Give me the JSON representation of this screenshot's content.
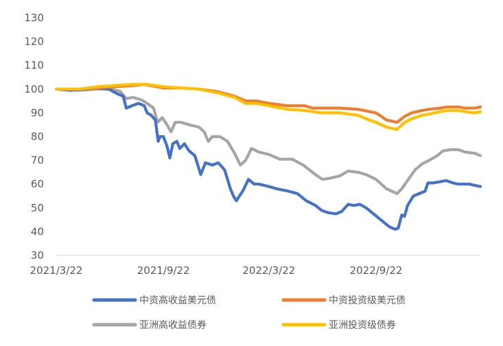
{
  "chart_data": {
    "type": "line",
    "title": "",
    "xlabel": "",
    "ylabel": "",
    "ylim": [
      30,
      130
    ],
    "yticks": [
      30,
      40,
      50,
      60,
      70,
      80,
      90,
      100,
      110,
      120,
      130
    ],
    "x_start": "2021/3/22",
    "x_end": "2023/3/20",
    "xticks": [
      "2021/3/22",
      "2021/9/22",
      "2022/3/22",
      "2022/9/22"
    ],
    "grid": false,
    "legend": "bottom",
    "series": [
      {
        "name": "中资高收益美元债",
        "color": "#4472C4",
        "points": [
          [
            "2021/3/22",
            100
          ],
          [
            "2021/4/15",
            99.5
          ],
          [
            "2021/5/10",
            100
          ],
          [
            "2021/6/1",
            100.5
          ],
          [
            "2021/6/20",
            100
          ],
          [
            "2021/7/5",
            98
          ],
          [
            "2021/7/15",
            97
          ],
          [
            "2021/7/20",
            92
          ],
          [
            "2021/7/30",
            93
          ],
          [
            "2021/8/10",
            94
          ],
          [
            "2021/8/20",
            93
          ],
          [
            "2021/8/25",
            90
          ],
          [
            "2021/9/1",
            89
          ],
          [
            "2021/9/8",
            87
          ],
          [
            "2021/9/13",
            78
          ],
          [
            "2021/9/16",
            80
          ],
          [
            "2021/9/22",
            80
          ],
          [
            "2021/9/28",
            76
          ],
          [
            "2021/10/3",
            71
          ],
          [
            "2021/10/8",
            77
          ],
          [
            "2021/10/15",
            78
          ],
          [
            "2021/10/20",
            75
          ],
          [
            "2021/10/28",
            77
          ],
          [
            "2021/11/5",
            74
          ],
          [
            "2021/11/15",
            72
          ],
          [
            "2021/11/20",
            68
          ],
          [
            "2021/11/25",
            64
          ],
          [
            "2021/12/3",
            69
          ],
          [
            "2021/12/15",
            68
          ],
          [
            "2021/12/25",
            69
          ],
          [
            "2022/1/5",
            66
          ],
          [
            "2022/1/15",
            58
          ],
          [
            "2022/1/20",
            55
          ],
          [
            "2022/1/25",
            53
          ],
          [
            "2022/2/5",
            57
          ],
          [
            "2022/2/15",
            62
          ],
          [
            "2022/2/25",
            60
          ],
          [
            "2022/3/5",
            60
          ],
          [
            "2022/3/22",
            59
          ],
          [
            "2022/4/5",
            58
          ],
          [
            "2022/4/25",
            57
          ],
          [
            "2022/5/10",
            56
          ],
          [
            "2022/5/25",
            53
          ],
          [
            "2022/6/10",
            51
          ],
          [
            "2022/6/20",
            49
          ],
          [
            "2022/7/1",
            48
          ],
          [
            "2022/7/15",
            47.5
          ],
          [
            "2022/7/25",
            48.5
          ],
          [
            "2022/8/5",
            51.5
          ],
          [
            "2022/8/15",
            51
          ],
          [
            "2022/8/25",
            51.5
          ],
          [
            "2022/9/5",
            50
          ],
          [
            "2022/9/15",
            48
          ],
          [
            "2022/9/25",
            46
          ],
          [
            "2022/10/5",
            44
          ],
          [
            "2022/10/15",
            42
          ],
          [
            "2022/10/25",
            41
          ],
          [
            "2022/10/30",
            41.5
          ],
          [
            "2022/11/5",
            47
          ],
          [
            "2022/11/10",
            46.5
          ],
          [
            "2022/11/15",
            51
          ],
          [
            "2022/11/25",
            55
          ],
          [
            "2022/12/5",
            56
          ],
          [
            "2022/12/15",
            57
          ],
          [
            "2022/12/20",
            60.5
          ],
          [
            "2022/12/28",
            60.5
          ],
          [
            "2023/1/10",
            61
          ],
          [
            "2023/1/20",
            61.5
          ],
          [
            "2023/2/1",
            60.5
          ],
          [
            "2023/2/10",
            60
          ],
          [
            "2023/2/20",
            60
          ],
          [
            "2023/3/1",
            60
          ],
          [
            "2023/3/10",
            59.5
          ],
          [
            "2023/3/20",
            59
          ]
        ]
      },
      {
        "name": "中资投资级美元债",
        "color": "#ED7D31",
        "points": [
          [
            "2021/3/22",
            100
          ],
          [
            "2021/5/1",
            100
          ],
          [
            "2021/6/1",
            100.5
          ],
          [
            "2021/7/1",
            101
          ],
          [
            "2021/8/1",
            101.5
          ],
          [
            "2021/8/20",
            102
          ],
          [
            "2021/9/22",
            100.5
          ],
          [
            "2021/10/22",
            100.5
          ],
          [
            "2021/11/22",
            100
          ],
          [
            "2021/12/22",
            99
          ],
          [
            "2022/1/22",
            97
          ],
          [
            "2022/2/10",
            95
          ],
          [
            "2022/3/1",
            95
          ],
          [
            "2022/3/22",
            94
          ],
          [
            "2022/4/22",
            93
          ],
          [
            "2022/5/22",
            93
          ],
          [
            "2022/6/5",
            92
          ],
          [
            "2022/6/22",
            92
          ],
          [
            "2022/7/22",
            92
          ],
          [
            "2022/8/22",
            91.5
          ],
          [
            "2022/9/22",
            90
          ],
          [
            "2022/10/10",
            87
          ],
          [
            "2022/10/28",
            86
          ],
          [
            "2022/11/10",
            88.5
          ],
          [
            "2022/11/22",
            90
          ],
          [
            "2022/12/10",
            91
          ],
          [
            "2022/12/22",
            91.5
          ],
          [
            "2023/1/10",
            92
          ],
          [
            "2023/1/22",
            92.5
          ],
          [
            "2023/2/10",
            92.5
          ],
          [
            "2023/2/22",
            92
          ],
          [
            "2023/3/10",
            92
          ],
          [
            "2023/3/20",
            92.5
          ]
        ]
      },
      {
        "name": "亚洲高收益债券",
        "color": "#A5A5A5",
        "points": [
          [
            "2021/3/22",
            100
          ],
          [
            "2021/5/1",
            99.5
          ],
          [
            "2021/6/1",
            100
          ],
          [
            "2021/6/25",
            100
          ],
          [
            "2021/7/10",
            99
          ],
          [
            "2021/7/20",
            96
          ],
          [
            "2021/8/1",
            96.5
          ],
          [
            "2021/8/15",
            95.5
          ],
          [
            "2021/8/25",
            94
          ],
          [
            "2021/9/5",
            92
          ],
          [
            "2021/9/12",
            86
          ],
          [
            "2021/9/20",
            88
          ],
          [
            "2021/9/28",
            85
          ],
          [
            "2021/10/5",
            82
          ],
          [
            "2021/10/12",
            86
          ],
          [
            "2021/10/22",
            86
          ],
          [
            "2021/11/5",
            85
          ],
          [
            "2021/11/22",
            84
          ],
          [
            "2021/12/1",
            82
          ],
          [
            "2021/12/8",
            78
          ],
          [
            "2021/12/15",
            80
          ],
          [
            "2021/12/28",
            80
          ],
          [
            "2022/1/10",
            78
          ],
          [
            "2022/1/22",
            73
          ],
          [
            "2022/2/1",
            68
          ],
          [
            "2022/2/10",
            70
          ],
          [
            "2022/2/20",
            75
          ],
          [
            "2022/3/5",
            73.5
          ],
          [
            "2022/3/22",
            72.5
          ],
          [
            "2022/4/10",
            70.5
          ],
          [
            "2022/5/1",
            70.5
          ],
          [
            "2022/5/20",
            68
          ],
          [
            "2022/6/10",
            64
          ],
          [
            "2022/6/22",
            62
          ],
          [
            "2022/7/5",
            62.5
          ],
          [
            "2022/7/22",
            63.5
          ],
          [
            "2022/8/5",
            65.5
          ],
          [
            "2022/8/22",
            65
          ],
          [
            "2022/9/5",
            64
          ],
          [
            "2022/9/22",
            62
          ],
          [
            "2022/10/10",
            58
          ],
          [
            "2022/10/28",
            56
          ],
          [
            "2022/11/5",
            58
          ],
          [
            "2022/11/15",
            61.5
          ],
          [
            "2022/11/28",
            66
          ],
          [
            "2022/12/10",
            68.5
          ],
          [
            "2022/12/22",
            70
          ],
          [
            "2023/1/5",
            72
          ],
          [
            "2023/1/15",
            74
          ],
          [
            "2023/1/28",
            74.5
          ],
          [
            "2023/2/10",
            74.5
          ],
          [
            "2023/2/22",
            73.5
          ],
          [
            "2023/3/10",
            73
          ],
          [
            "2023/3/20",
            72
          ]
        ]
      },
      {
        "name": "亚洲投资级债券",
        "color": "#FFC000",
        "points": [
          [
            "2021/3/22",
            100
          ],
          [
            "2021/5/1",
            100
          ],
          [
            "2021/6/1",
            101
          ],
          [
            "2021/7/1",
            101.5
          ],
          [
            "2021/8/1",
            102
          ],
          [
            "2021/8/25",
            102
          ],
          [
            "2021/9/22",
            101
          ],
          [
            "2021/10/22",
            100.5
          ],
          [
            "2021/11/22",
            100
          ],
          [
            "2021/12/22",
            98.5
          ],
          [
            "2022/1/22",
            96.5
          ],
          [
            "2022/2/10",
            94
          ],
          [
            "2022/3/1",
            94
          ],
          [
            "2022/3/22",
            93
          ],
          [
            "2022/4/22",
            91.5
          ],
          [
            "2022/5/22",
            91
          ],
          [
            "2022/6/22",
            90
          ],
          [
            "2022/7/22",
            90
          ],
          [
            "2022/8/22",
            89
          ],
          [
            "2022/9/10",
            87
          ],
          [
            "2022/9/22",
            86
          ],
          [
            "2022/10/10",
            84
          ],
          [
            "2022/10/28",
            83
          ],
          [
            "2022/11/10",
            86
          ],
          [
            "2022/11/22",
            87.5
          ],
          [
            "2022/12/10",
            89
          ],
          [
            "2022/12/22",
            89.5
          ],
          [
            "2023/1/10",
            90.5
          ],
          [
            "2023/1/22",
            91
          ],
          [
            "2023/2/10",
            91
          ],
          [
            "2023/2/22",
            90.5
          ],
          [
            "2023/3/10",
            90
          ],
          [
            "2023/3/20",
            90.5
          ]
        ]
      }
    ]
  }
}
